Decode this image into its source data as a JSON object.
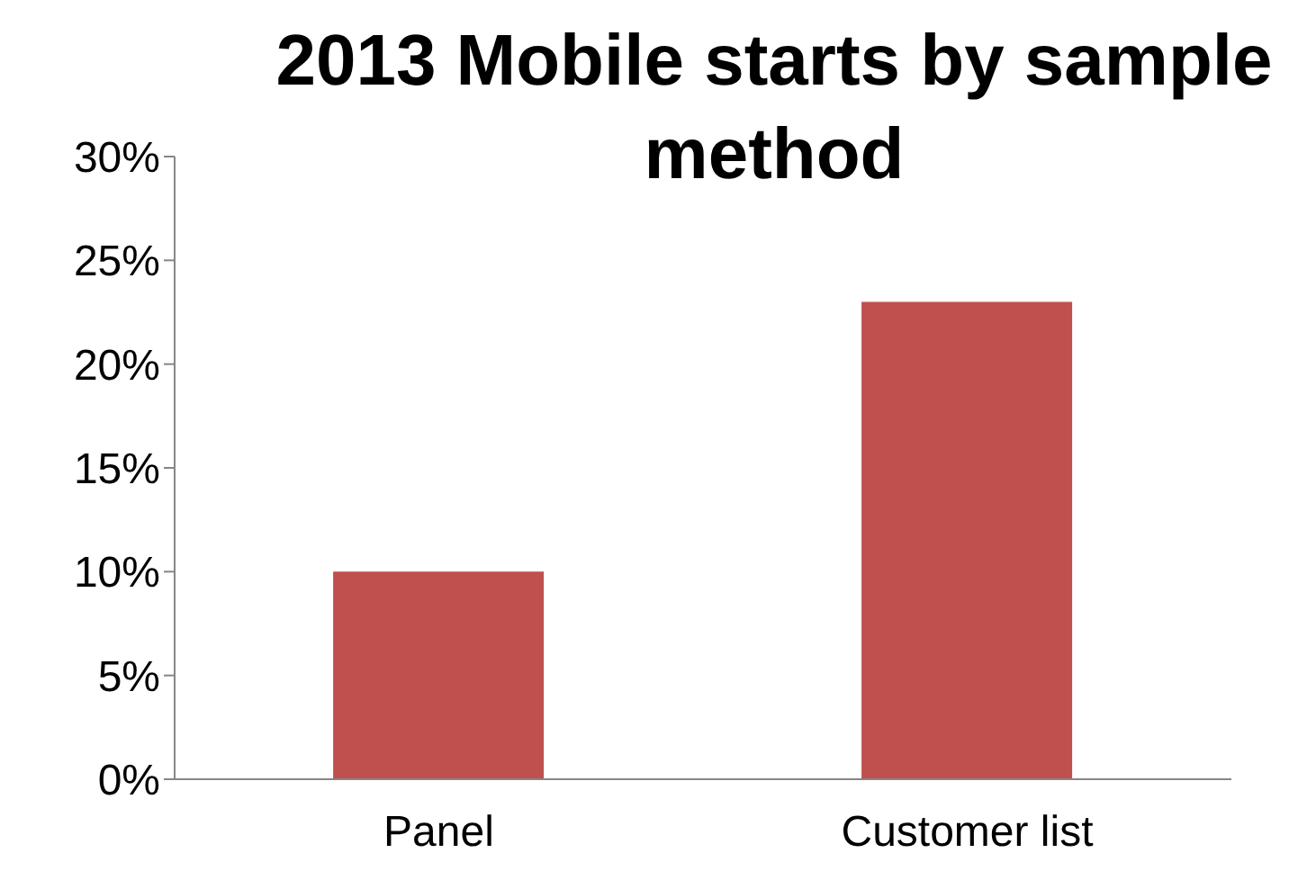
{
  "chart_data": {
    "type": "bar",
    "title": "2013 Mobile starts by sample method",
    "categories": [
      "Panel",
      "Customer list"
    ],
    "values": [
      10,
      23
    ],
    "color": "#c0504d",
    "ylim": [
      0,
      30
    ],
    "yticks": [
      {
        "value": 0,
        "label": "0%"
      },
      {
        "value": 5,
        "label": "5%"
      },
      {
        "value": 10,
        "label": "10%"
      },
      {
        "value": 15,
        "label": "15%"
      },
      {
        "value": 20,
        "label": "20%"
      },
      {
        "value": 25,
        "label": "25%"
      },
      {
        "value": 30,
        "label": "30%"
      }
    ],
    "grid": false,
    "legend": false
  }
}
